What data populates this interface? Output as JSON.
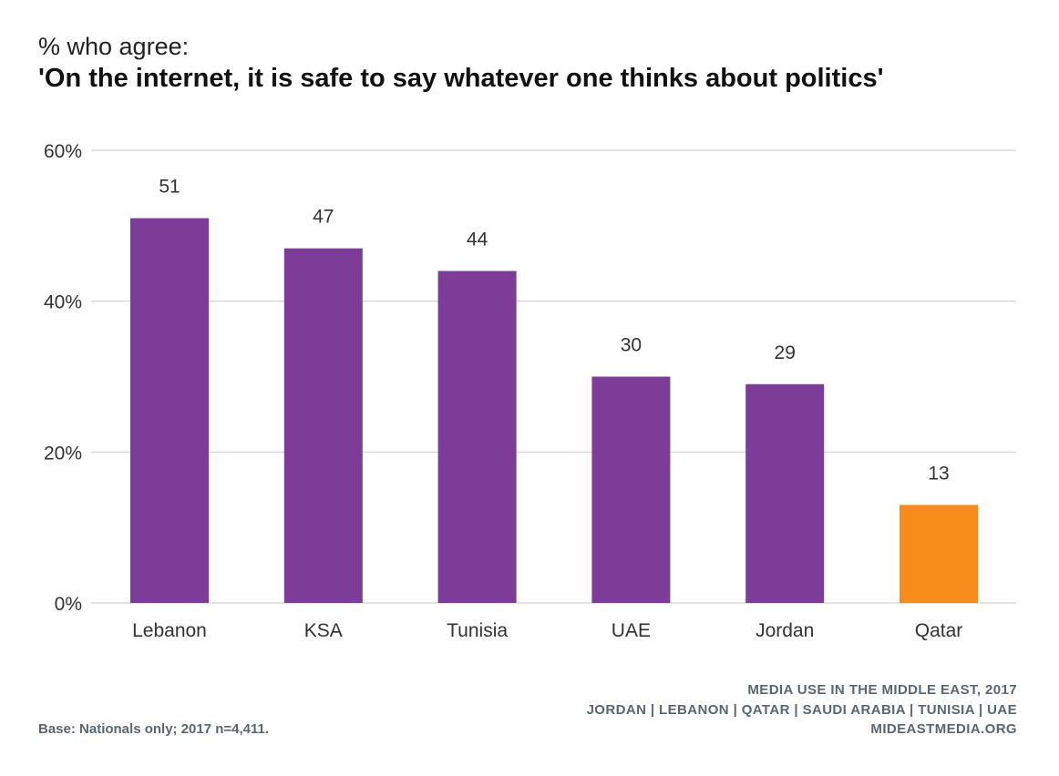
{
  "header": {
    "subtitle": "% who agree:",
    "title": "'On the internet, it is safe to say whatever one thinks about politics'"
  },
  "chart_data": {
    "type": "bar",
    "categories": [
      "Lebanon",
      "KSA",
      "Tunisia",
      "UAE",
      "Jordan",
      "Qatar"
    ],
    "values": [
      51,
      47,
      44,
      30,
      29,
      13
    ],
    "bar_colors": [
      "#7d3c98",
      "#7d3c98",
      "#7d3c98",
      "#7d3c98",
      "#7d3c98",
      "#f78c1a"
    ],
    "ylim": [
      0,
      60
    ],
    "yticks": [
      0,
      20,
      40,
      60
    ],
    "ytick_labels": [
      "0%",
      "20%",
      "40%",
      "60%"
    ],
    "grid": true,
    "xlabel": "",
    "ylabel": "",
    "title": "'On the internet, it is safe to say whatever one thinks about politics'"
  },
  "footer": {
    "source_line1": "MEDIA USE IN THE MIDDLE EAST, 2017",
    "source_line2": "JORDAN | LEBANON | QATAR | SAUDI ARABIA | TUNISIA | UAE",
    "source_line3": "MIDEASTMEDIA.ORG",
    "base_note": "Base: Nationals only; 2017 n=4,411."
  },
  "colors": {
    "primary_bar": "#7d3c98",
    "highlight_bar": "#f78c1a",
    "gridline": "#d9d9d9",
    "footer_text": "#5b6770"
  }
}
